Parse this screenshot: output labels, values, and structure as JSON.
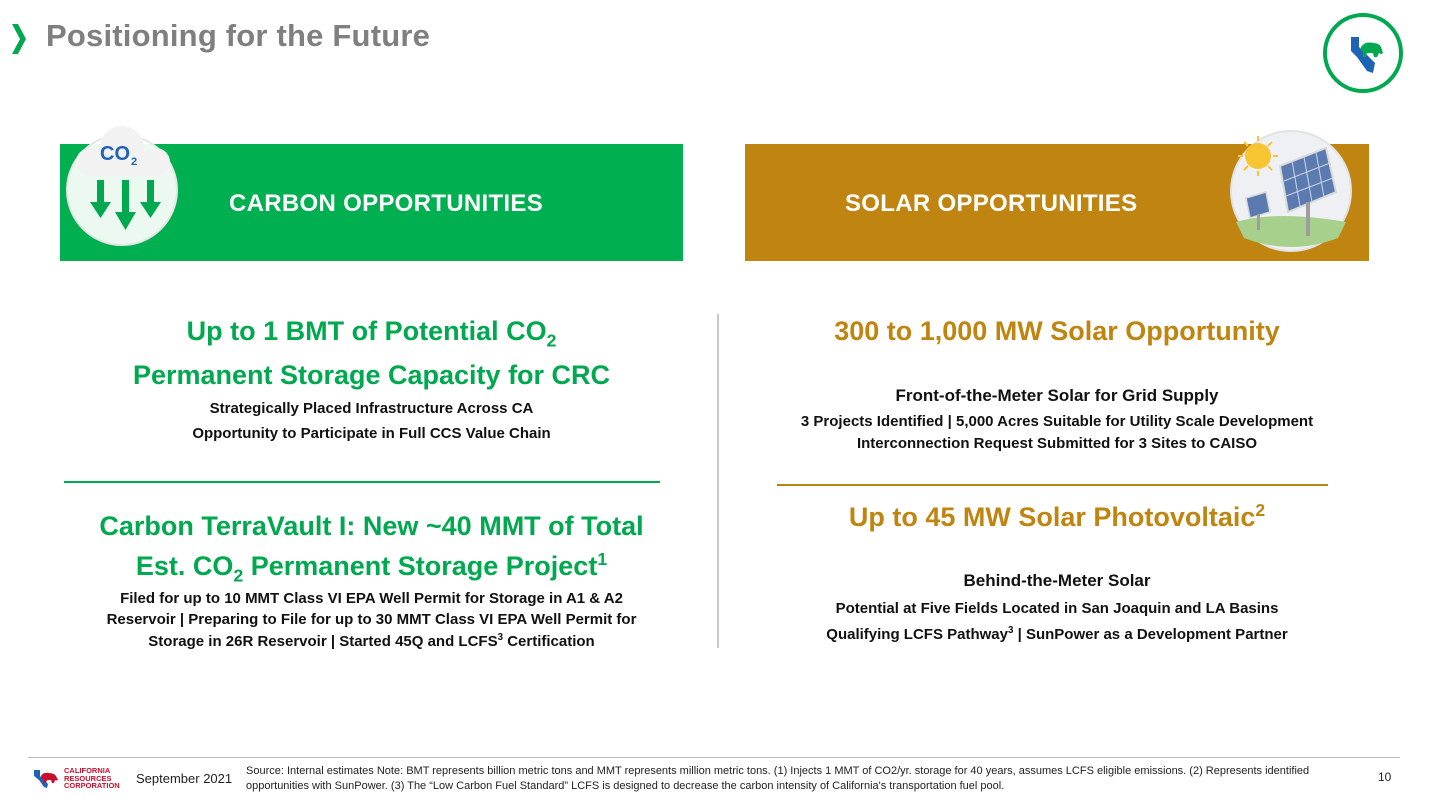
{
  "header": {
    "title": "Positioning for the Future",
    "colors": {
      "chevron": "#00a84f",
      "title": "#7f7f7f"
    },
    "logo_icon": "california-bear-icon"
  },
  "carbon": {
    "banner_label": "CARBON OPPORTUNITIES",
    "banner_color": "#00b050",
    "icon": "co2-down-arrows-icon",
    "icon_label_co": "CO",
    "icon_label_sub": "2",
    "head1_a": "Up to 1 BMT of Potential CO",
    "head1_sub": "2",
    "head1_b": "Permanent Storage Capacity for CRC",
    "line1": "Strategically Placed Infrastructure Across CA",
    "line2": "Opportunity to Participate in Full CCS Value Chain",
    "head2_a": "Carbon TerraVault I:  New ~40 MMT of Total",
    "head2_b_pre": "Est. CO",
    "head2_b_sub": "2",
    "head2_b_post": " Permanent Storage Project",
    "head2_b_sup": "1",
    "detail1": "Filed for up to 10 MMT Class VI EPA Well Permit for Storage in A1 & A2",
    "detail2": "Reservoir  | Preparing to File for up to 30 MMT Class VI EPA Well Permit for",
    "detail3_pre": "Storage in 26R Reservoir | Started 45Q and LCFS",
    "detail3_sup": "3",
    "detail3_post": " Certification"
  },
  "solar": {
    "banner_label": "SOLAR OPPORTUNITIES",
    "banner_color": "#bf8510",
    "icon": "sun-solar-panel-icon",
    "head1": "300 to 1,000 MW Solar Opportunity",
    "sub1": "Front-of-the-Meter Solar for Grid Supply",
    "line1": "3 Projects Identified | 5,000 Acres Suitable for Utility Scale Development",
    "line2": "Interconnection Request Submitted for 3 Sites to CAISO",
    "head2": "Up to 45 MW Solar Photovoltaic",
    "head2_sup": "2",
    "sub2": "Behind-the-Meter Solar",
    "line3": "Potential at Five Fields Located in San Joaquin and LA Basins",
    "line4_pre": "Qualifying LCFS Pathway",
    "line4_sup": "3",
    "line4_post": " | SunPower as a Development Partner"
  },
  "footer": {
    "company_line1": "CALIFORNIA",
    "company_line2": "RESOURCES",
    "company_line3": "CORPORATION",
    "date": "September 2021",
    "source": "Source: Internal estimates Note: BMT represents billion metric tons and MMT represents million metric tons. (1) Injects 1 MMT of CO2/yr. storage for 40 years, assumes LCFS eligible emissions. (2) Represents identified opportunities with SunPower. (3) The “Low Carbon Fuel Standard” LCFS is designed to decrease the carbon intensity of California's transportation fuel pool.",
    "page_number": "10"
  }
}
